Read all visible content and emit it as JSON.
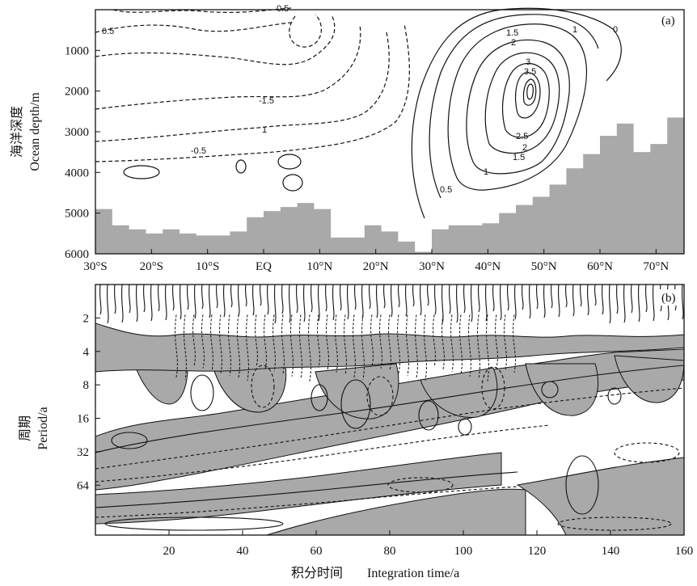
{
  "chart_data": [
    {
      "type": "contour",
      "panel_label": "(a)",
      "ylabel_zh": "海洋深度",
      "ylabel": "Ocean depth/m",
      "xlabel": "",
      "x_tick_labels": [
        "30°S",
        "20°S",
        "10°S",
        "EQ",
        "10°N",
        "20°N",
        "30°N",
        "40°N",
        "50°N",
        "60°N",
        "70°N"
      ],
      "x_ticks": [
        -30,
        -20,
        -10,
        0,
        10,
        20,
        30,
        40,
        50,
        60,
        70
      ],
      "xlim": [
        -30,
        75
      ],
      "y_tick_labels": [
        "1000",
        "2000",
        "3000",
        "4000",
        "5000",
        "6000"
      ],
      "y_ticks": [
        1000,
        2000,
        3000,
        4000,
        5000,
        6000
      ],
      "ylim": [
        6000,
        0
      ],
      "contour_labels": [
        "0.5",
        "-1.5",
        "1",
        "-0.5",
        "0.5",
        "1.5",
        "1",
        "0",
        "2",
        "3",
        "3.5",
        "2.5",
        "2",
        "1.5",
        "1",
        "0.5"
      ],
      "bathymetry": {
        "lat": [
          -30,
          -27,
          -24,
          -21,
          -18,
          -15,
          -12,
          -9,
          -6,
          -3,
          0,
          3,
          6,
          9,
          12,
          15,
          18,
          21,
          24,
          27,
          30,
          33,
          36,
          39,
          42,
          45,
          48,
          51,
          54,
          57,
          60,
          63,
          66,
          69,
          72,
          75
        ],
        "depth": [
          4900,
          5300,
          5400,
          5500,
          5400,
          5500,
          5550,
          5550,
          5450,
          5100,
          4950,
          4850,
          4750,
          4900,
          5600,
          5600,
          5300,
          5450,
          5700,
          5950,
          5400,
          5300,
          5300,
          5250,
          5000,
          4800,
          4600,
          4300,
          3900,
          3550,
          3100,
          2800,
          3500,
          3300,
          2650,
          3300
        ]
      }
    },
    {
      "type": "contour",
      "panel_label": "(b)",
      "ylabel_zh": "周期",
      "ylabel": "Period/a",
      "xlabel_zh": "积分时间",
      "xlabel": "Integration time/a",
      "x_ticks": [
        20,
        40,
        60,
        80,
        100,
        120,
        140,
        160
      ],
      "xlim": [
        0,
        160
      ],
      "y_ticks": [
        2,
        4,
        8,
        16,
        32,
        64
      ],
      "y_scale": "log2",
      "ylim": [
        1,
        180
      ]
    }
  ],
  "colors": {
    "fill": "#a9a9a9",
    "line": "#111111",
    "background": "#ffffff"
  }
}
